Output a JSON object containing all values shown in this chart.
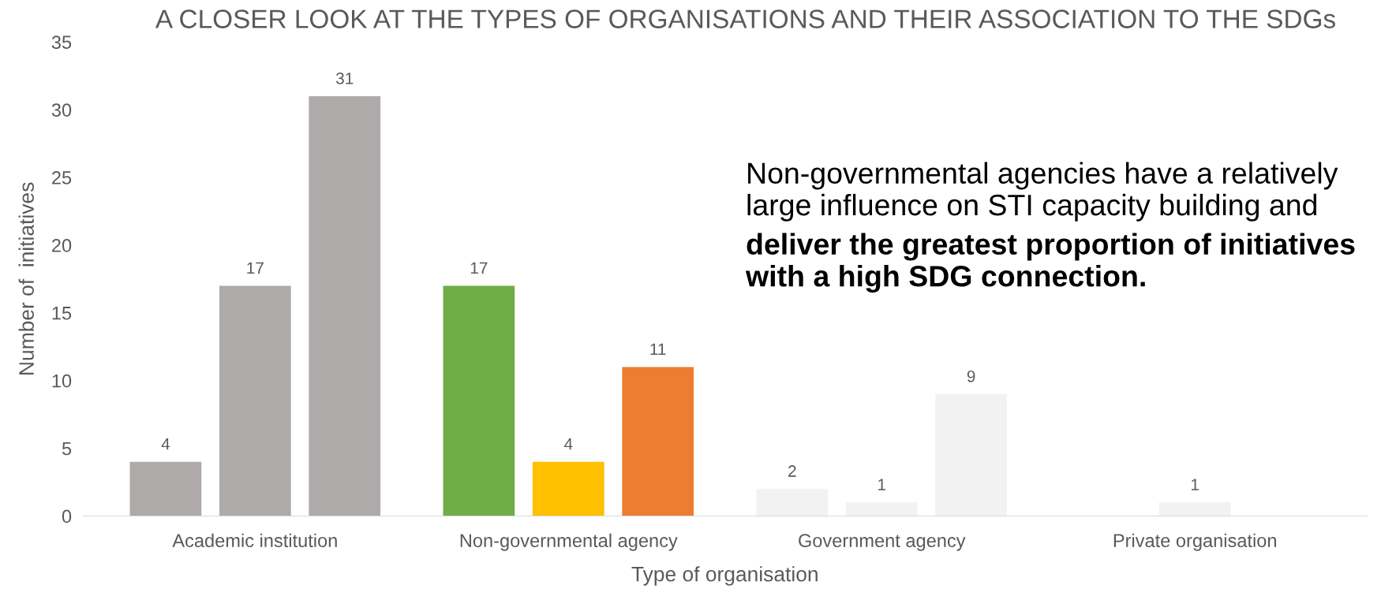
{
  "chart_data": {
    "type": "bar",
    "title": "A CLOSER LOOK AT THE TYPES OF ORGANISATIONS AND THEIR ASSOCIATION TO THE SDGs",
    "xlabel": "Type of organisation",
    "ylabel": "Number of  initiatives",
    "categories": [
      "Academic institution",
      "Non-governmental agency",
      "Government agency",
      "Private organisation"
    ],
    "series": [
      {
        "values": [
          4,
          17,
          2,
          null
        ],
        "colors": [
          "#aeaaaa",
          "#70ad47",
          "#f2f2f2",
          "#f2f2f2"
        ]
      },
      {
        "values": [
          17,
          4,
          1,
          1
        ],
        "colors": [
          "#aeaaaa",
          "#ffc000",
          "#f2f2f2",
          "#f2f2f2"
        ]
      },
      {
        "values": [
          31,
          11,
          9,
          null
        ],
        "colors": [
          "#aeaaaa",
          "#ed7d31",
          "#f2f2f2",
          "#f2f2f2"
        ]
      }
    ],
    "ylim": [
      0,
      35
    ],
    "yticks": [
      0,
      5,
      10,
      15,
      20,
      25,
      30,
      35
    ],
    "grid": false,
    "data_labels": true,
    "legend": false,
    "annotations": [
      "Non-governmental agencies have a relatively large influence on STI capacity building and",
      "deliver the greatest proportion of initiatives with a high SDG connection."
    ]
  }
}
